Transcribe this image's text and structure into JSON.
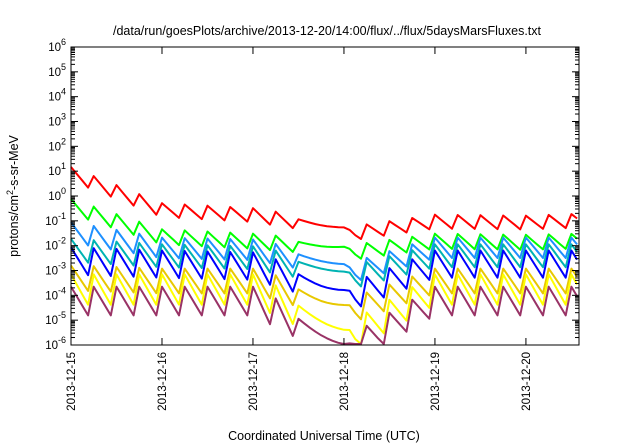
{
  "chart_data": {
    "type": "line",
    "title": "/data/run/goesPlots/archive/2013-12-20/14:00/flux/../flux/5daysMarsFluxes.txt",
    "xlabel": "Coordinated Universal Time (UTC)",
    "ylabel": "protons/cm²-s-sr-MeV",
    "yscale": "log",
    "ylim": [
      1e-06,
      1000000.0
    ],
    "xlim": [
      "2013-12-15",
      "2013-12-20T14:00"
    ],
    "xticks": [
      "2013-12-15",
      "2013-12-16",
      "2013-12-17",
      "2013-12-18",
      "2013-12-19",
      "2013-12-20"
    ],
    "yticks": [
      {
        "base": "10",
        "exp": "-6"
      },
      {
        "base": "10",
        "exp": "-5"
      },
      {
        "base": "10",
        "exp": "-4"
      },
      {
        "base": "10",
        "exp": "-3"
      },
      {
        "base": "10",
        "exp": "-2"
      },
      {
        "base": "10",
        "exp": "-1"
      },
      {
        "base": "10",
        "exp": "0"
      },
      {
        "base": "10",
        "exp": "1"
      },
      {
        "base": "10",
        "exp": "2"
      },
      {
        "base": "10",
        "exp": "3"
      },
      {
        "base": "10",
        "exp": "4"
      },
      {
        "base": "10",
        "exp": "5"
      },
      {
        "base": "10",
        "exp": "6"
      }
    ],
    "grid": false,
    "legend": "none",
    "series": [
      {
        "color": "#ff0000",
        "start": 10,
        "end_gap": 0.04,
        "after_gap": 0.13,
        "sawtooth_drop": 0.28,
        "x": [
          "2013-12-15",
          "2013-12-16",
          "2013-12-17",
          "2013-12-18",
          "2013-12-18T02:00",
          "2013-12-19",
          "2013-12-20",
          "2013-12-20T14:00"
        ],
        "y": [
          10,
          0.35,
          0.22,
          0.06,
          0.04,
          0.12,
          0.11,
          0.13
        ]
      },
      {
        "color": "#00ff00",
        "start": 0.5,
        "end_gap": 0.007,
        "after_gap": 0.02,
        "sawtooth_drop": 0.25,
        "x": [
          "2013-12-15",
          "2013-12-16",
          "2013-12-17",
          "2013-12-18",
          "2013-12-18T02:00",
          "2013-12-19",
          "2013-12-20",
          "2013-12-20T14:00"
        ],
        "y": [
          0.5,
          0.03,
          0.02,
          0.01,
          0.007,
          0.02,
          0.018,
          0.02
        ]
      },
      {
        "color": "#1e90ff",
        "start": 0.05,
        "end_gap": 0.0012,
        "after_gap": 0.015,
        "sawtooth_drop": 0.15,
        "x": [
          "2013-12-15",
          "2013-12-16",
          "2013-12-17",
          "2013-12-18",
          "2013-12-18T02:00",
          "2013-12-19",
          "2013-12-20",
          "2013-12-20T14:00"
        ],
        "y": [
          0.05,
          0.012,
          0.01,
          0.002,
          0.0012,
          0.012,
          0.012,
          0.012
        ]
      },
      {
        "color": "#00b3b3",
        "start": 0.01,
        "end_gap": 0.0008,
        "after_gap": 0.008,
        "sawtooth_drop": 0.12,
        "x": [
          "2013-12-15",
          "2013-12-16",
          "2013-12-17",
          "2013-12-18",
          "2013-12-18T02:00",
          "2013-12-19",
          "2013-12-20",
          "2013-12-20T14:00"
        ],
        "y": [
          0.01,
          0.006,
          0.005,
          0.001,
          0.0008,
          0.006,
          0.006,
          0.006
        ]
      },
      {
        "color": "#0000ff",
        "start": 0.004,
        "end_gap": 0.00015,
        "after_gap": 0.004,
        "sawtooth_drop": 0.08,
        "x": [
          "2013-12-15",
          "2013-12-16",
          "2013-12-17",
          "2013-12-18",
          "2013-12-18T02:00",
          "2013-12-19",
          "2013-12-20",
          "2013-12-20T14:00"
        ],
        "y": [
          0.004,
          0.003,
          0.0025,
          0.0002,
          0.00015,
          0.003,
          0.003,
          0.003
        ]
      },
      {
        "color": "#e8c800",
        "start": 0.0008,
        "end_gap": 4e-05,
        "after_gap": 0.0008,
        "sawtooth_drop": 0.1,
        "x": [
          "2013-12-15",
          "2013-12-16",
          "2013-12-17",
          "2013-12-18",
          "2013-12-18T02:00",
          "2013-12-19",
          "2013-12-20",
          "2013-12-20T14:00"
        ],
        "y": [
          0.0008,
          0.0006,
          0.0006,
          5e-05,
          4e-05,
          0.0006,
          0.0006,
          0.0006
        ]
      },
      {
        "color": "#ffff00",
        "start": 0.0003,
        "end_gap": 4e-06,
        "after_gap": 0.0003,
        "sawtooth_drop": 0.06,
        "x": [
          "2013-12-15",
          "2013-12-16",
          "2013-12-17",
          "2013-12-18",
          "2013-12-18T02:00",
          "2013-12-19",
          "2013-12-20",
          "2013-12-20T14:00"
        ],
        "y": [
          0.0003,
          0.0003,
          0.0003,
          5e-06,
          4e-06,
          0.0003,
          0.0003,
          0.0003
        ]
      },
      {
        "color": "#993366",
        "start": 0.0001,
        "end_gap": 1.2e-06,
        "after_gap": 0.0001,
        "sawtooth_drop": 0.07,
        "x": [
          "2013-12-15",
          "2013-12-16",
          "2013-12-17",
          "2013-12-18",
          "2013-12-18T02:00",
          "2013-12-19",
          "2013-12-20",
          "2013-12-20T14:00"
        ],
        "y": [
          0.0001,
          0.0001,
          0.0001,
          1.3e-06,
          1.2e-06,
          0.0001,
          0.0001,
          0.0001
        ]
      }
    ]
  }
}
